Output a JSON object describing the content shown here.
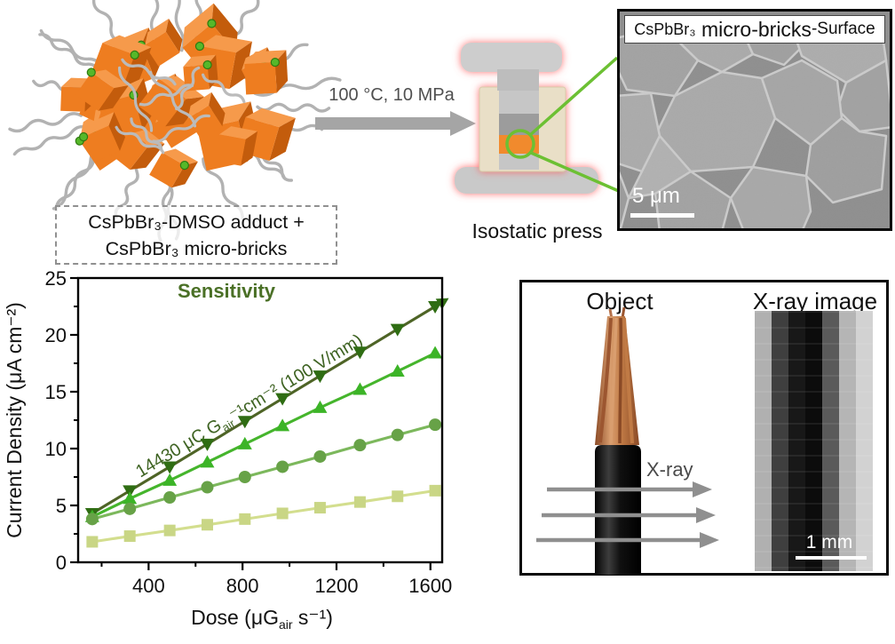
{
  "top": {
    "adduct_box": {
      "line1": "CsPbBr₃-DMSO adduct +",
      "line2": "CsPbBr₃ micro-bricks"
    },
    "process_arrow": {
      "label": "100 °C, 10 MPa"
    },
    "press": {
      "label": "Isostatic press"
    },
    "sem": {
      "title_p1": "CsPbBr₃",
      "title_p2": " micro-bricks",
      "title_p3": "-Surface",
      "scale_bar": "5 μm"
    }
  },
  "chart_data": {
    "type": "line",
    "title": "Sensitivity",
    "xlabel": "Dose (μGair s⁻¹)",
    "xlabel_parts": {
      "p1": "Dose  (μG",
      "sub": "air",
      "p2": " s⁻¹)"
    },
    "ylabel": "Current Density (μA cm⁻²)",
    "annotation": "14430 μC Gair⁻¹cm⁻² (100 V/mm)",
    "annotation_parts": {
      "p1": "14430 μC  G",
      "sub": "air",
      "p2": "⁻¹cm⁻² (100 V/mm)"
    },
    "x": [
      160,
      320,
      490,
      650,
      810,
      970,
      1130,
      1300,
      1460,
      1620
    ],
    "series": [
      {
        "marker": "triangle-down",
        "marker_color": "#2f6d13",
        "line_color": "#4e6426",
        "trend_arrow": true,
        "values": [
          4.3,
          6.3,
          8.4,
          10.4,
          12.4,
          14.4,
          16.4,
          18.5,
          20.5,
          22.5
        ]
      },
      {
        "marker": "triangle-up",
        "marker_color": "#3cb427",
        "line_color": "#45b52c",
        "values": [
          4.0,
          5.6,
          7.2,
          8.8,
          10.4,
          12.0,
          13.6,
          15.2,
          16.8,
          18.4
        ]
      },
      {
        "marker": "circle",
        "marker_color": "#67a247",
        "line_color": "#7cb85c",
        "values": [
          3.8,
          4.7,
          5.7,
          6.6,
          7.5,
          8.4,
          9.3,
          10.3,
          11.2,
          12.1
        ]
      },
      {
        "marker": "square",
        "marker_color": "#c9d685",
        "line_color": "#d3de8e",
        "values": [
          1.8,
          2.3,
          2.8,
          3.3,
          3.8,
          4.3,
          4.8,
          5.3,
          5.8,
          6.3
        ]
      }
    ],
    "xlim": [
      100,
      1650
    ],
    "ylim": [
      0,
      25
    ],
    "x_ticks": [
      400,
      800,
      1200,
      1600
    ],
    "x_minor_ticks": [
      200,
      600,
      1000,
      1400
    ],
    "y_ticks": [
      0,
      5,
      10,
      15,
      20,
      25
    ],
    "y_minor_ticks": [
      2.5,
      7.5,
      12.5,
      17.5,
      22.5
    ],
    "grid": false,
    "legend": false,
    "title_color": "#4a7026",
    "annotation_color": "#3e6322"
  },
  "xray_panel": {
    "object_label": "Object",
    "image_label": "X-ray image",
    "beam_label": "X-ray",
    "scale_bar": "1 mm",
    "band_colors": [
      "#d2d2d2",
      "#b5b5b5",
      "#5a5a5a",
      "#0c0c0c",
      "#181818",
      "#3f3f3f",
      "#b0b0b0"
    ]
  },
  "colors": {
    "brick_orange": "#ee7d20",
    "ligand_green": "#56b82a",
    "callout_green": "#6cc033",
    "arrow_gray": "#a5a5a5"
  }
}
